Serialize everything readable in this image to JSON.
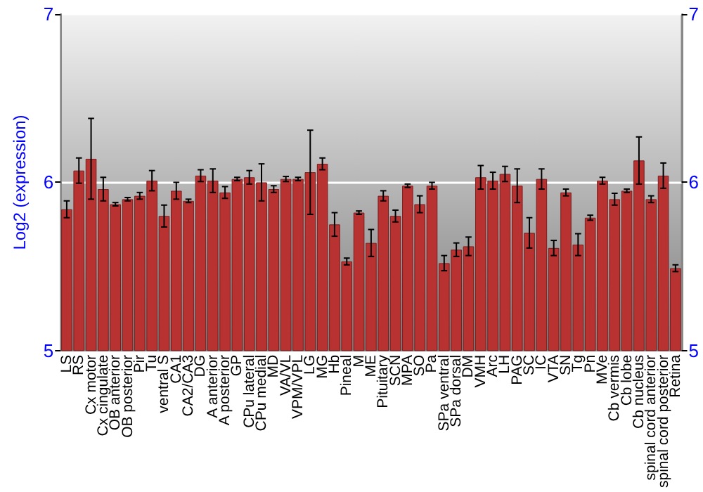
{
  "chart_data": {
    "type": "bar",
    "ylabel": "Log2 (expression)",
    "categories": [
      "LS",
      "RS",
      "Cx motor",
      "Cx cingulate",
      "OB anterior",
      "OB posterior",
      "Pir",
      "Tu",
      "ventral S",
      "CA1",
      "CA2/CA3",
      "DG",
      "A anterior",
      "A posterior",
      "GP",
      "CPu lateral",
      "CPu medial",
      "MD",
      "VA/VL",
      "VPM/VPL",
      "LG",
      "MG",
      "Hb",
      "Pineal",
      "M",
      "ME",
      "Pituitary",
      "SCN",
      "MPA",
      "SO",
      "Pa",
      "SPa ventral",
      "SPa dorsal",
      "DM",
      "VMH",
      "Arc",
      "LH",
      "PAG",
      "SC",
      "IC",
      "VTA",
      "SN",
      "Tg",
      "Pn",
      "MVe",
      "Cb vermis",
      "Cb lobe",
      "Cb nucleus",
      "spinal cord anterior",
      "spinal cord posterior",
      "Retina"
    ],
    "values": [
      5.84,
      6.07,
      6.14,
      5.96,
      5.87,
      5.9,
      5.92,
      6.01,
      5.8,
      5.95,
      5.89,
      6.04,
      6.01,
      5.94,
      6.02,
      6.03,
      6.0,
      5.96,
      6.02,
      6.02,
      6.06,
      6.11,
      5.75,
      5.53,
      5.82,
      5.64,
      5.92,
      5.8,
      5.98,
      5.87,
      5.98,
      5.52,
      5.6,
      5.62,
      6.03,
      6.01,
      6.05,
      5.98,
      5.7,
      6.02,
      5.61,
      5.94,
      5.63,
      5.79,
      6.01,
      5.9,
      5.95,
      6.13,
      5.9,
      6.04,
      5.49
    ],
    "errors": [
      0.05,
      0.075,
      0.24,
      0.07,
      0.01,
      0.01,
      0.02,
      0.06,
      0.065,
      0.05,
      0.01,
      0.035,
      0.07,
      0.035,
      0.01,
      0.04,
      0.11,
      0.02,
      0.015,
      0.01,
      0.25,
      0.035,
      0.07,
      0.02,
      0.01,
      0.08,
      0.03,
      0.035,
      0.01,
      0.05,
      0.02,
      0.045,
      0.04,
      0.055,
      0.07,
      0.05,
      0.045,
      0.1,
      0.09,
      0.06,
      0.045,
      0.02,
      0.065,
      0.015,
      0.02,
      0.035,
      0.01,
      0.14,
      0.02,
      0.075,
      0.02
    ],
    "color": "#b83232",
    "ylim": [
      5,
      7
    ],
    "yticks": [
      5,
      6,
      7
    ],
    "y2lim": [
      5,
      7
    ],
    "y2ticks": [
      5,
      6,
      7
    ],
    "grid": "y"
  }
}
